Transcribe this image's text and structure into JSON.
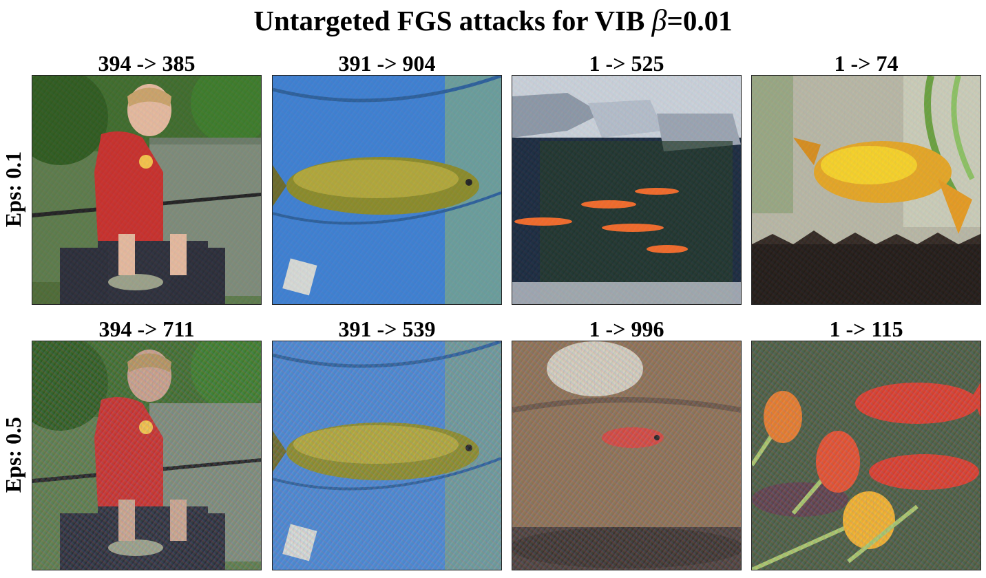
{
  "title": {
    "prefix": "Untargeted FGS attacks for VIB",
    "symbol": "β",
    "suffix": "=0.01"
  },
  "rows": [
    {
      "label": "Eps: 0.1"
    },
    {
      "label": "Eps: 0.5"
    }
  ],
  "captions": {
    "r0": [
      "394 -> 385",
      "391 -> 904",
      "1 -> 525",
      "1 -> 74"
    ],
    "r1": [
      "394 -> 711",
      "391 -> 539",
      "1 -> 996",
      "1 -> 115"
    ]
  },
  "images": {
    "r0": [
      "boy-holding-fish-photo",
      "fish-in-net-photo",
      "goldfish-pond-photo",
      "goldfish-tank-photo"
    ],
    "r1": [
      "boy-holding-fish-photo",
      "fish-in-net-photo",
      "goldfish-pond-photo",
      "goldfish-tulips-photo"
    ]
  }
}
